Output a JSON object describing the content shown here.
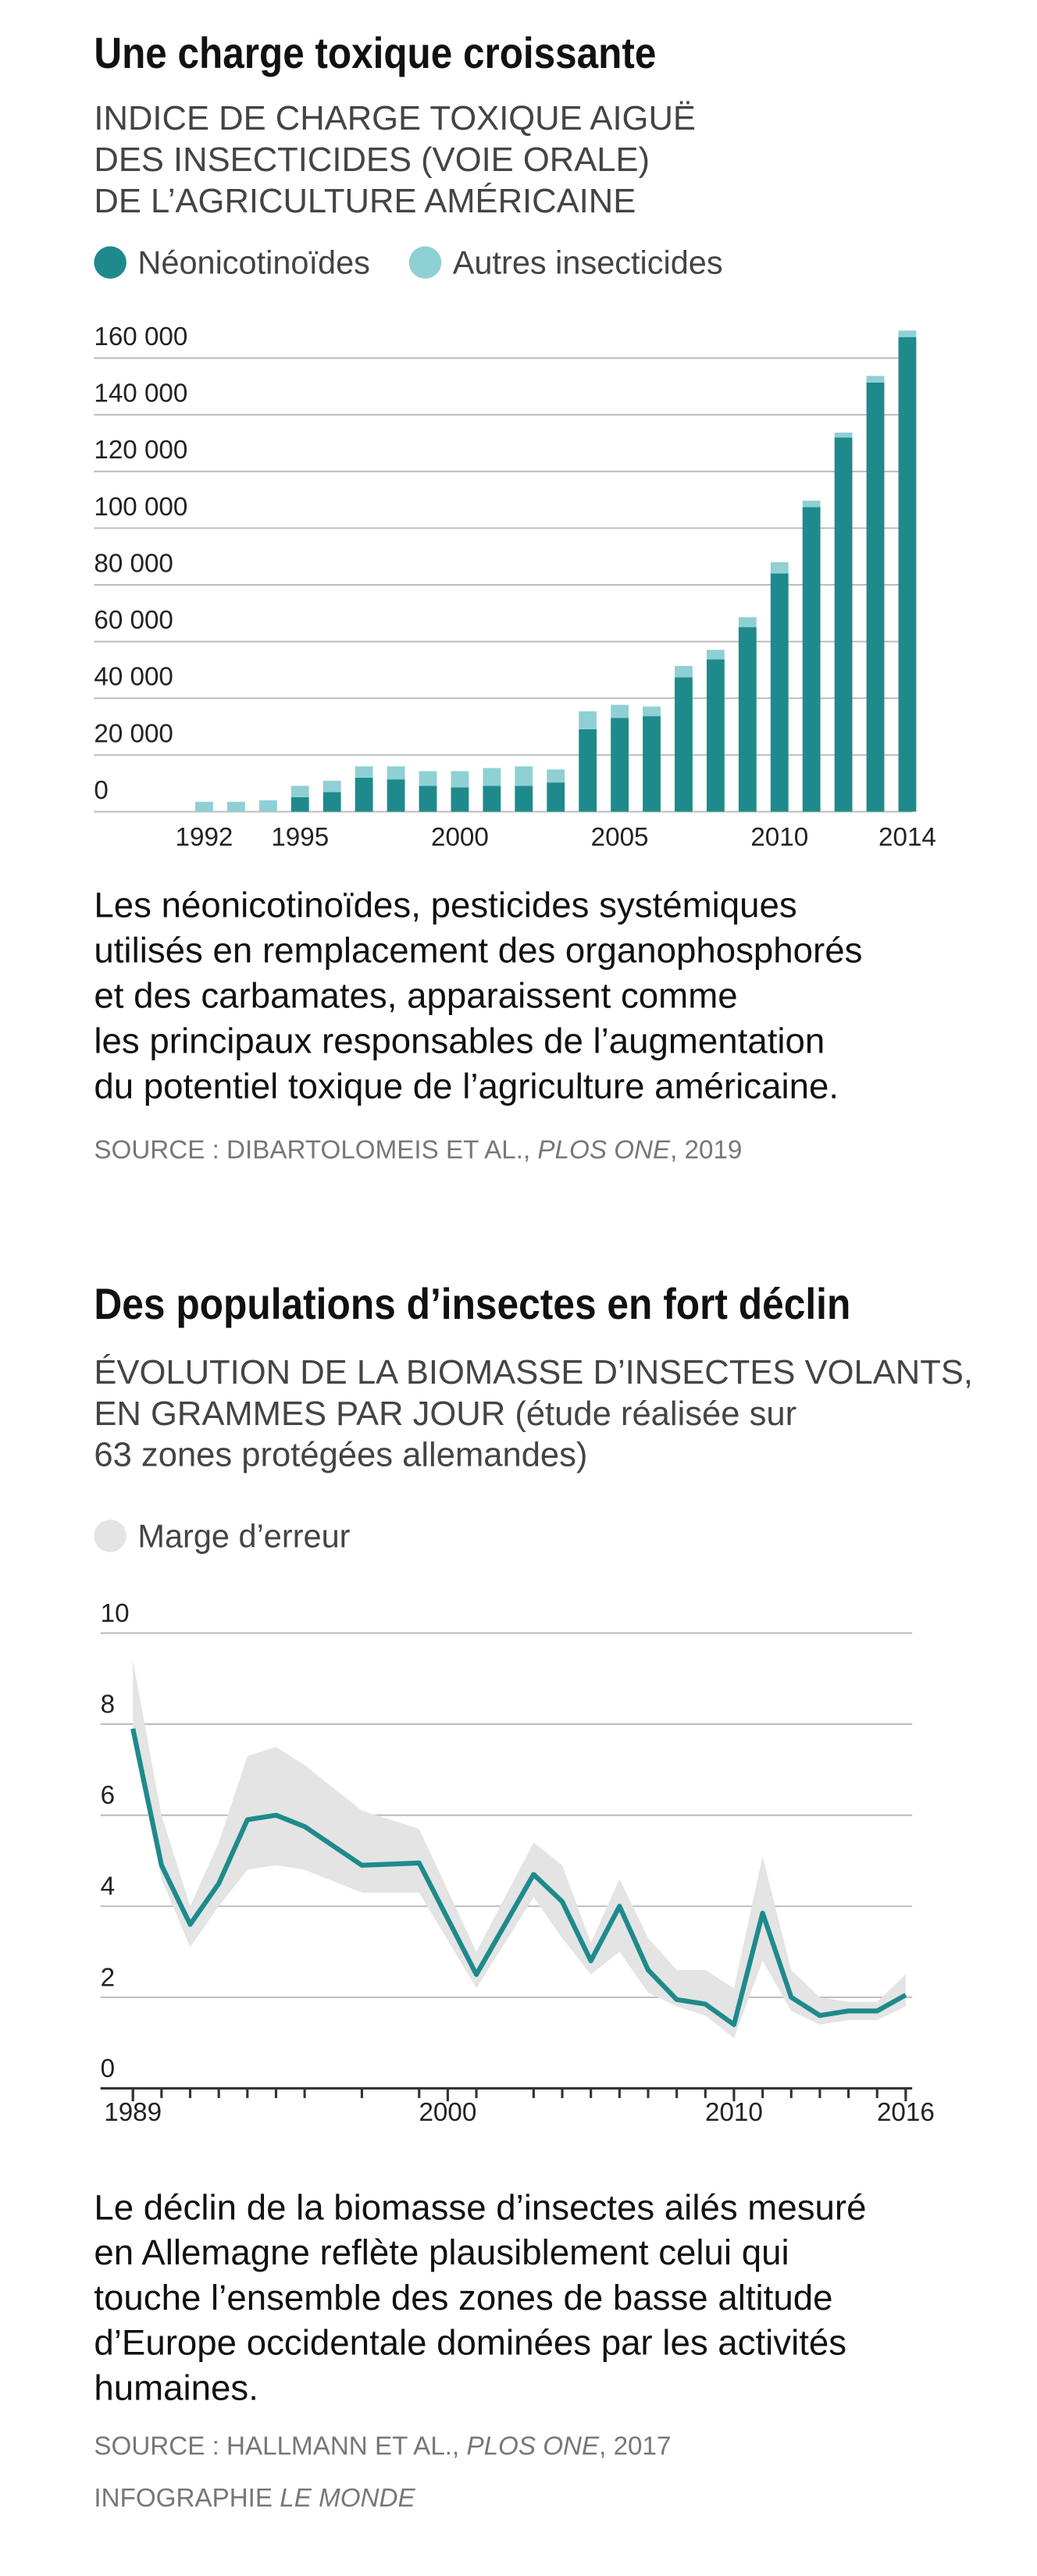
{
  "chart_data": [
    {
      "type": "bar",
      "stacked": true,
      "title": "Une charge toxique croissante",
      "subtitle": [
        "INDICE DE CHARGE TOXIQUE AIGUË",
        "DES INSECTICIDES (VOIE ORALE)",
        "DE L’AGRICULTURE AMÉRICAINE"
      ],
      "categories": [
        "1992",
        null,
        null,
        "1995",
        null,
        null,
        null,
        null,
        "2000",
        null,
        null,
        null,
        null,
        "2005",
        null,
        null,
        null,
        null,
        "2010",
        null,
        null,
        null,
        "2014"
      ],
      "series": [
        {
          "name": "Néonicotinoïdes",
          "color": "#1e8a8c",
          "values": [
            0,
            0,
            0,
            5100,
            6900,
            12000,
            11400,
            9100,
            8600,
            9100,
            9100,
            10300,
            29100,
            33100,
            33700,
            47400,
            53700,
            65100,
            84000,
            107400,
            132000,
            151400,
            167400
          ]
        },
        {
          "name": "Autres insecticides",
          "color": "#8fd0d4",
          "values": [
            3500,
            3500,
            4000,
            4000,
            4000,
            4000,
            4600,
            5200,
            5700,
            6300,
            6900,
            4600,
            6300,
            4600,
            3400,
            4000,
            3400,
            3500,
            4000,
            2300,
            1700,
            2300,
            2300
          ]
        }
      ],
      "ylim": [
        0,
        170000
      ],
      "yticks": [
        0,
        {
          "value": 20000,
          "label": "20 000"
        },
        {
          "value": 40000,
          "label": "40 000"
        },
        {
          "value": 60000,
          "label": "60 000"
        },
        {
          "value": 80000,
          "label": "80 000"
        },
        {
          "value": 100000,
          "label": "100 000"
        },
        {
          "value": 120000,
          "label": "120 000"
        },
        {
          "value": 140000,
          "label": "140 000"
        },
        {
          "value": 160000,
          "label": "160 000"
        }
      ],
      "grid": true,
      "note": [
        "Les néonicotinoïdes, pesticides systémiques",
        "utilisés en remplacement des organophosphorés",
        "et des carbamates, apparaissent comme",
        "les principaux responsables de l’augmentation",
        "du potentiel toxique de l’agriculture américaine."
      ],
      "source": [
        "SOURCE : DIBARTOLOMEIS ET AL., ",
        "PLOS ONE",
        ",  2019"
      ]
    },
    {
      "type": "line",
      "title": "Des populations d’insectes en fort déclin",
      "subtitle": [
        "ÉVOLUTION DE LA BIOMASSE D’INSECTES VOLANTS,",
        "EN GRAMMES PAR JOUR (étude réalisée sur",
        "63 zones protégées allemandes)"
      ],
      "x": [
        1989,
        1990,
        1991,
        1992,
        1993,
        1994,
        1995,
        1997,
        1999,
        2001,
        2003,
        2004,
        2005,
        2006,
        2007,
        2008,
        2009,
        2010,
        2011,
        2012,
        2013,
        2014,
        2015,
        2016
      ],
      "values": [
        7.9,
        4.9,
        3.6,
        4.5,
        5.9,
        6.0,
        5.75,
        4.9,
        4.95,
        2.5,
        4.7,
        4.1,
        2.8,
        4.0,
        2.6,
        1.95,
        1.85,
        1.4,
        3.85,
        2.0,
        1.6,
        1.7,
        1.7,
        2.05
      ],
      "color": "#1e8a8c",
      "band": {
        "name": "Marge d’erreur",
        "color": "#e4e4e4",
        "upper": [
          9.4,
          6.0,
          4.0,
          5.4,
          7.3,
          7.5,
          7.1,
          6.1,
          5.7,
          3.0,
          5.4,
          4.9,
          3.2,
          4.6,
          3.3,
          2.6,
          2.6,
          2.2,
          5.1,
          2.6,
          2.0,
          1.9,
          1.9,
          2.5
        ],
        "lower": [
          7.6,
          4.6,
          3.1,
          4.0,
          4.8,
          4.9,
          4.8,
          4.3,
          4.3,
          2.2,
          4.2,
          3.3,
          2.5,
          3.0,
          2.1,
          1.8,
          1.6,
          1.1,
          2.8,
          1.7,
          1.4,
          1.5,
          1.5,
          1.8
        ]
      },
      "xlim": [
        1989,
        2016
      ],
      "xticks": [
        1989,
        2000,
        2010,
        2016
      ],
      "ylim": [
        0,
        10
      ],
      "yticks": [
        0,
        2,
        4,
        6,
        8,
        10
      ],
      "grid": true,
      "note": [
        "Le déclin de la biomasse d’insectes ailés mesuré",
        "en Allemagne reflète plausiblement celui qui",
        "touche l’ensemble des zones de basse altitude",
        "d’Europe occidentale dominées par les activités",
        "humaines."
      ],
      "source": [
        "SOURCE : HALLMANN ET AL., ",
        "PLOS ONE",
        ", 2017"
      ],
      "credit": [
        "INFOGRAPHIE ",
        "LE MONDE"
      ]
    }
  ]
}
